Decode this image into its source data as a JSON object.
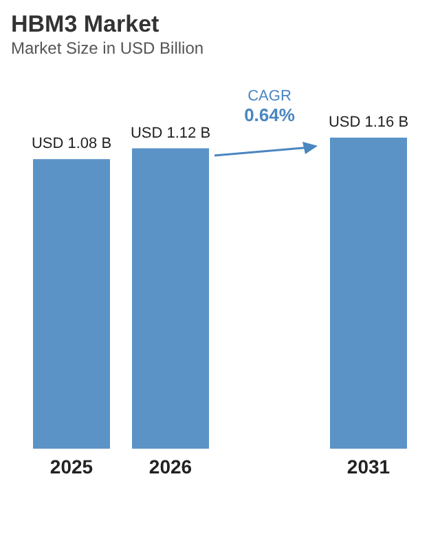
{
  "chart_data": {
    "type": "bar",
    "title": "HBM3 Market",
    "subtitle": "Market Size in USD Billion",
    "categories": [
      "2025",
      "2026",
      null,
      "2031"
    ],
    "values": [
      1.08,
      1.12,
      null,
      1.16
    ],
    "value_labels": [
      "USD 1.08 B",
      "USD 1.12 B",
      null,
      "USD 1.16 B"
    ],
    "color": "#5b93c7",
    "annotations": [
      "CAGR",
      "0.64%"
    ]
  }
}
